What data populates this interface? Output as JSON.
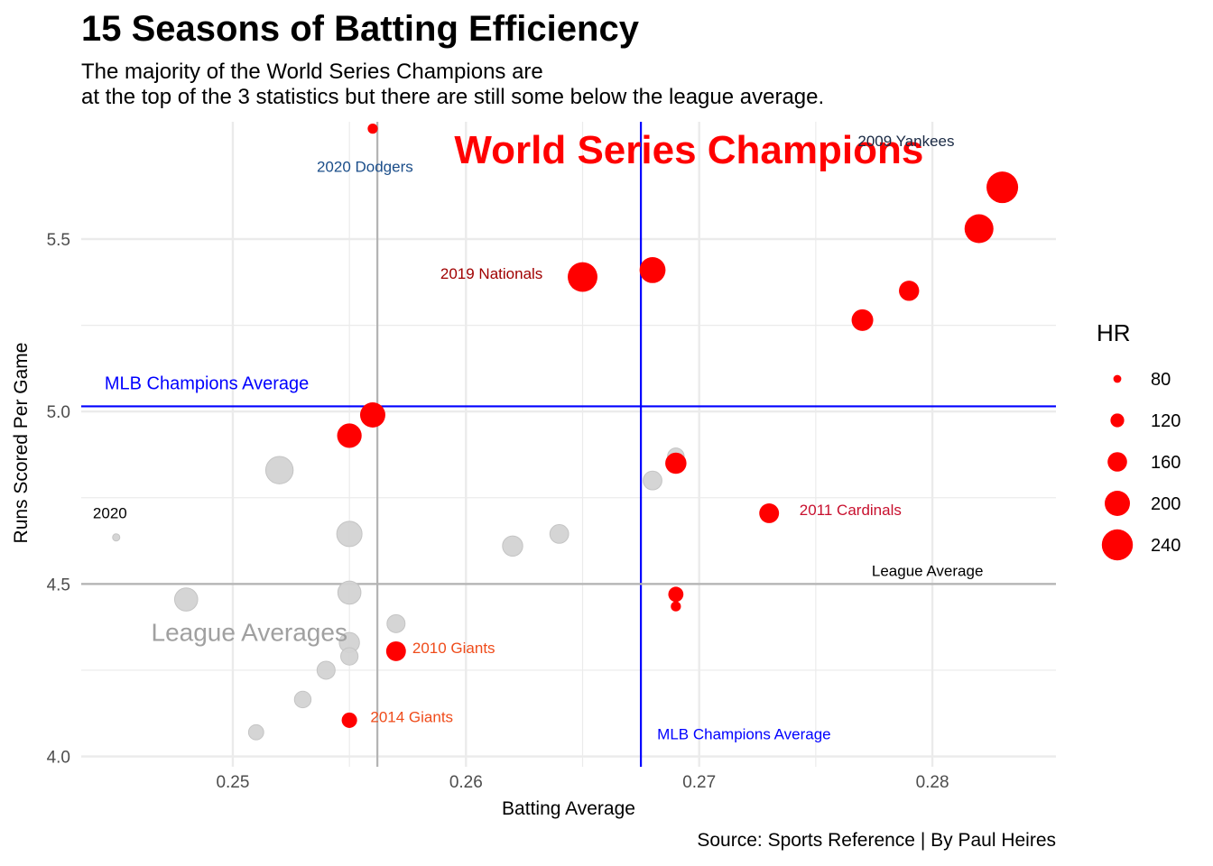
{
  "title": "15 Seasons of Batting Efficiency",
  "subtitle": [
    "The majority of the World Series Champions are",
    "at the top of the 3 statistics but there are still some below the league average."
  ],
  "caption": "Source: Sports Reference | By Paul Heires",
  "colors": {
    "champion": "#ff0000",
    "league": "#d3d3d3",
    "champion_avg_line": "#0000ff",
    "league_avg_line": "#b3b3b3",
    "grid": "#ebebeb"
  },
  "chart_data": {
    "type": "scatter",
    "xlabel": "Batting Average",
    "ylabel": "Runs Scored Per Game",
    "xlim": [
      0.2435,
      0.2853
    ],
    "ylim": [
      3.97,
      5.84
    ],
    "x_ticks": [
      0.25,
      0.26,
      0.27,
      0.28
    ],
    "x_tick_labels": [
      "0.25",
      "0.26",
      "0.27",
      "0.28"
    ],
    "y_ticks": [
      4.0,
      4.5,
      5.0,
      5.5
    ],
    "y_tick_labels": [
      "4.0",
      "4.5",
      "5.0",
      "5.5"
    ],
    "grid": true,
    "size_legend": {
      "title": "HR",
      "values": [
        80,
        120,
        160,
        200,
        240
      ],
      "labels": [
        "80",
        "120",
        "160",
        "200",
        "240"
      ],
      "placement": "right"
    },
    "reference_lines": [
      {
        "orientation": "horizontal",
        "value": 5.015,
        "label": "MLB Champions Average",
        "color": "#0000ff"
      },
      {
        "orientation": "vertical",
        "value": 0.2675,
        "label": "MLB Champions Average",
        "color": "#0000ff"
      },
      {
        "orientation": "horizontal",
        "value": 4.5,
        "label": "League Average",
        "color": "#b3b3b3"
      },
      {
        "orientation": "vertical",
        "value": 0.2562,
        "label": "",
        "color": "#b3b3b3"
      }
    ],
    "series": [
      {
        "name": "World Series Champions",
        "color": "#ff0000",
        "points": [
          {
            "x": 0.256,
            "y": 5.82,
            "hr": 95
          },
          {
            "x": 0.283,
            "y": 5.65,
            "hr": 244
          },
          {
            "x": 0.282,
            "y": 5.53,
            "hr": 225
          },
          {
            "x": 0.279,
            "y": 5.35,
            "hr": 165
          },
          {
            "x": 0.277,
            "y": 5.265,
            "hr": 175
          },
          {
            "x": 0.268,
            "y": 5.41,
            "hr": 205
          },
          {
            "x": 0.265,
            "y": 5.39,
            "hr": 231
          },
          {
            "x": 0.256,
            "y": 4.99,
            "hr": 200
          },
          {
            "x": 0.255,
            "y": 4.93,
            "hr": 195
          },
          {
            "x": 0.269,
            "y": 4.85,
            "hr": 172
          },
          {
            "x": 0.273,
            "y": 4.705,
            "hr": 162
          },
          {
            "x": 0.269,
            "y": 4.47,
            "hr": 130
          },
          {
            "x": 0.269,
            "y": 4.435,
            "hr": 95
          },
          {
            "x": 0.257,
            "y": 4.305,
            "hr": 162
          },
          {
            "x": 0.255,
            "y": 4.105,
            "hr": 132
          }
        ]
      },
      {
        "name": "League Averages",
        "color": "#d3d3d3",
        "points": [
          {
            "x": 0.245,
            "y": 4.635,
            "hr": 75
          },
          {
            "x": 0.252,
            "y": 4.83,
            "hr": 215
          },
          {
            "x": 0.269,
            "y": 4.87,
            "hr": 140
          },
          {
            "x": 0.268,
            "y": 4.8,
            "hr": 155
          },
          {
            "x": 0.255,
            "y": 4.645,
            "hr": 200
          },
          {
            "x": 0.264,
            "y": 4.645,
            "hr": 155
          },
          {
            "x": 0.262,
            "y": 4.61,
            "hr": 165
          },
          {
            "x": 0.255,
            "y": 4.475,
            "hr": 185
          },
          {
            "x": 0.248,
            "y": 4.455,
            "hr": 185
          },
          {
            "x": 0.257,
            "y": 4.385,
            "hr": 150
          },
          {
            "x": 0.255,
            "y": 4.33,
            "hr": 165
          },
          {
            "x": 0.255,
            "y": 4.29,
            "hr": 145
          },
          {
            "x": 0.254,
            "y": 4.25,
            "hr": 150
          },
          {
            "x": 0.253,
            "y": 4.165,
            "hr": 140
          },
          {
            "x": 0.251,
            "y": 4.07,
            "hr": 130
          }
        ]
      }
    ],
    "annotations": [
      {
        "text": "World Series Champions",
        "color": "#ff0000",
        "bold": true,
        "style": "big",
        "at": [
          0.2595,
          5.72
        ]
      },
      {
        "text": "League Averages",
        "color": "#a0a0a0",
        "bold": false,
        "style": "medium",
        "at": [
          0.2465,
          4.335
        ]
      },
      {
        "text": "2009 Yankees",
        "color": "#1a2a44",
        "style": "small",
        "at": [
          0.2768,
          5.77
        ]
      },
      {
        "text": "2020 Dodgers",
        "color": "#1b4e8a",
        "style": "small",
        "at": [
          0.2536,
          5.695
        ]
      },
      {
        "text": "2019 Nationals",
        "color": "#a00000",
        "style": "small",
        "at": [
          0.2589,
          5.385
        ]
      },
      {
        "text": "2011 Cardinals",
        "color": "#c8102e",
        "style": "small",
        "at": [
          0.2743,
          4.7
        ]
      },
      {
        "text": "2010 Giants",
        "color": "#ef4b1a",
        "style": "small",
        "at": [
          0.2577,
          4.3
        ]
      },
      {
        "text": "2014 Giants",
        "color": "#ef4b1a",
        "style": "small",
        "at": [
          0.2559,
          4.1
        ]
      },
      {
        "text": "2020",
        "color": "#000000",
        "style": "small",
        "at": [
          0.244,
          4.69
        ]
      },
      {
        "text": "League Average",
        "color": "#000000",
        "style": "small",
        "at": [
          0.2774,
          4.523
        ]
      },
      {
        "text": "MLB Champions Average",
        "color": "#0000ff",
        "style": "line",
        "at": [
          0.2445,
          5.065
        ]
      },
      {
        "text": "MLB Champions Average",
        "color": "#0000ff",
        "style": "small",
        "at": [
          0.2682,
          4.05
        ]
      }
    ]
  }
}
